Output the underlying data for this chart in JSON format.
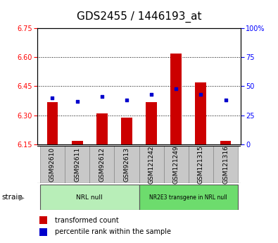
{
  "title": "GDS2455 / 1446193_at",
  "samples": [
    "GSM92610",
    "GSM92611",
    "GSM92612",
    "GSM92613",
    "GSM121242",
    "GSM121249",
    "GSM121315",
    "GSM121316"
  ],
  "red_values": [
    6.37,
    6.17,
    6.31,
    6.29,
    6.37,
    6.62,
    6.47,
    6.17
  ],
  "blue_percentiles": [
    40,
    37,
    41,
    38,
    43,
    48,
    43,
    38
  ],
  "baseline": 6.15,
  "ylim_left": [
    6.15,
    6.75
  ],
  "ylim_right": [
    0,
    100
  ],
  "yticks_left": [
    6.15,
    6.3,
    6.45,
    6.6,
    6.75
  ],
  "yticks_right": [
    0,
    25,
    50,
    75,
    100
  ],
  "groups": [
    {
      "label": "NRL null",
      "start": 0,
      "end": 4,
      "color": "#b8eeb8"
    },
    {
      "label": "NR2E3 transgene in NRL null",
      "start": 4,
      "end": 8,
      "color": "#6ddc6d"
    }
  ],
  "strain_label": "strain",
  "legend_items": [
    {
      "color": "#cc0000",
      "label": "transformed count"
    },
    {
      "color": "#0000cc",
      "label": "percentile rank within the sample"
    }
  ],
  "bar_color": "#cc0000",
  "dot_color": "#0000cc",
  "title_fontsize": 11,
  "tick_fontsize": 7,
  "label_fontsize": 6.5,
  "bar_width": 0.45,
  "background_color": "#ffffff",
  "tick_label_bg": "#c8c8c8"
}
